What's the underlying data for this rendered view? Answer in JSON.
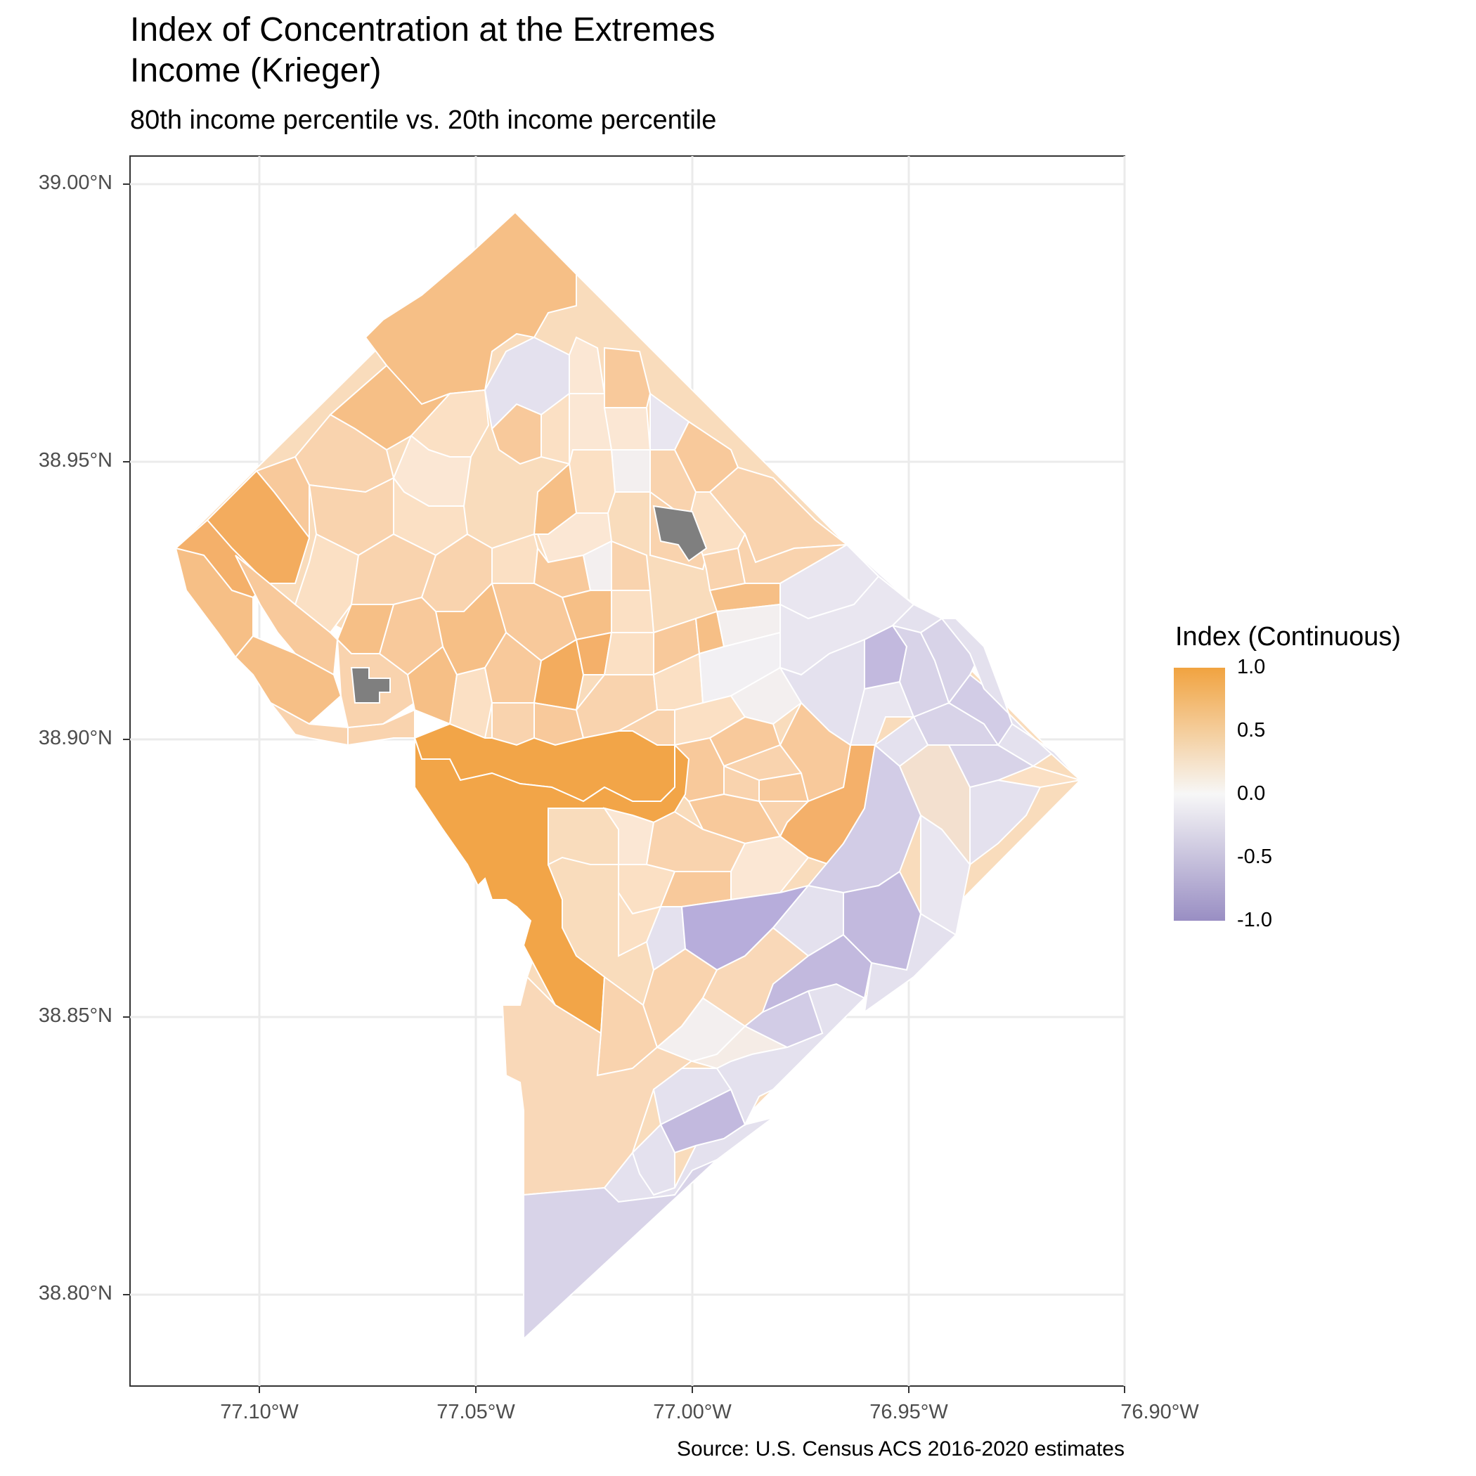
{
  "title_line1": "Index of Concentration at the Extremes",
  "title_line2": "Income (Krieger)",
  "subtitle": "80th income percentile vs. 20th income percentile",
  "caption": "Source: U.S. Census ACS 2016-2020 estimates",
  "legend": {
    "title": "Index (Continuous)",
    "ticks": [
      "1.0",
      "0.5",
      "0.0",
      "-0.5",
      "-1.0"
    ],
    "colors": {
      "high": "#f1a340",
      "mid": "#f7f7f7",
      "low": "#998ec3",
      "na": "#7f7f7f"
    }
  },
  "axes": {
    "y_ticks": [
      "39.00°N",
      "38.95°N",
      "38.90°N",
      "38.85°N",
      "38.80°N"
    ],
    "x_ticks": [
      "77.10°W",
      "77.05°W",
      "77.00°W",
      "76.95°W",
      "76.90°W"
    ]
  },
  "map_data": {
    "region": "Washington, DC census tracts",
    "variable": "ICE Income (Krieger) index",
    "range": [
      -1.0,
      1.0
    ]
  }
}
